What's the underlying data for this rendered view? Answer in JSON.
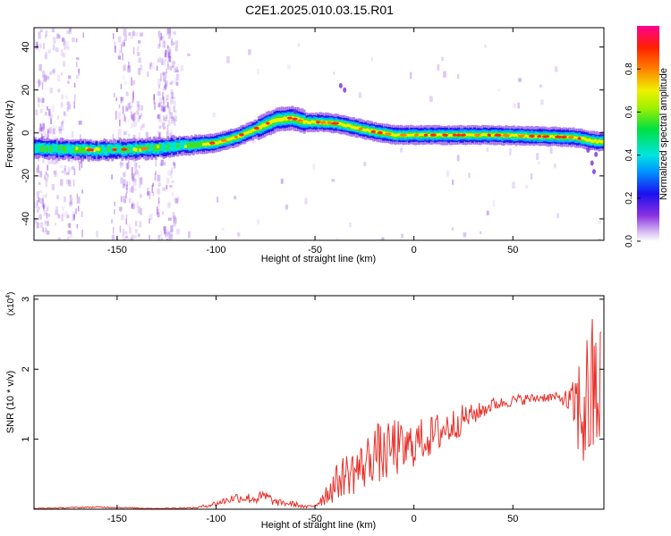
{
  "title": "C2E1.2025.010.03.15.R01",
  "chart_data": [
    {
      "type": "heatmap",
      "xlabel": "Height of straight line (km)",
      "ylabel": "Frequency (Hz)",
      "xlim": [
        -192,
        96
      ],
      "ylim": [
        -50,
        49
      ],
      "x_ticks": [
        -150,
        -100,
        -50,
        0,
        50
      ],
      "y_ticks": [
        -40,
        -20,
        0,
        20,
        40
      ],
      "colorbar": {
        "label": "Normalized spectral amplitude",
        "range": [
          0,
          1
        ],
        "ticks": [
          "0.0",
          "0.2",
          "0.4",
          "0.6",
          "0.8"
        ]
      },
      "ridge_frequency_hz": {
        "x": [
          -192,
          -180,
          -160,
          -140,
          -130,
          -120,
          -110,
          -100,
          -90,
          -80,
          -70,
          -62,
          -55,
          -48,
          -40,
          -30,
          -20,
          -10,
          0,
          20,
          40,
          60,
          80,
          92
        ],
        "y": [
          -7,
          -7.5,
          -8,
          -7.5,
          -7,
          -6,
          -5.5,
          -4.5,
          -2,
          2,
          6,
          7,
          5,
          5,
          4.5,
          2.5,
          0.5,
          -1,
          -1,
          -1,
          -1,
          -1.5,
          -2,
          -4
        ]
      },
      "grid": false
    },
    {
      "type": "line",
      "xlabel": "Height of straight line (km)",
      "ylabel": "SNR (10 * v/v)",
      "y_multiplier": "(x10",
      "y_multiplier_exp": "4",
      "y_multiplier_close": ")",
      "xlim": [
        -192,
        96
      ],
      "ylim": [
        0,
        3.05
      ],
      "x_ticks": [
        -150,
        -100,
        -50,
        0,
        50
      ],
      "y_ticks": [
        1,
        2,
        3
      ],
      "color": "#e8302a",
      "series": [
        {
          "x": [
            -192,
            -160,
            -130,
            -110,
            -100,
            -90,
            -80,
            -75,
            -70,
            -60,
            -55,
            -50,
            -45,
            -40,
            -35,
            -30,
            -25,
            -20,
            -15,
            -10,
            -5,
            0,
            5,
            10,
            15,
            20,
            25,
            30,
            35,
            40,
            45,
            50,
            55,
            60,
            65,
            70,
            75,
            80,
            85,
            90,
            94
          ],
          "y": [
            0.01,
            0.03,
            0.01,
            0.02,
            0.08,
            0.17,
            0.15,
            0.18,
            0.1,
            0.07,
            0.03,
            0.05,
            0.2,
            0.35,
            0.5,
            0.55,
            0.62,
            0.85,
            0.75,
            0.9,
            0.82,
            0.95,
            1.0,
            1.05,
            1.15,
            1.2,
            1.3,
            1.35,
            1.42,
            1.5,
            1.52,
            1.55,
            1.57,
            1.58,
            1.6,
            1.6,
            1.58,
            1.5,
            1.4,
            1.6,
            1.7
          ],
          "noise": [
            0.005,
            0.01,
            0.005,
            0.01,
            0.04,
            0.07,
            0.08,
            0.1,
            0.05,
            0.04,
            0.02,
            0.03,
            0.15,
            0.25,
            0.3,
            0.35,
            0.35,
            0.45,
            0.4,
            0.45,
            0.35,
            0.35,
            0.3,
            0.3,
            0.3,
            0.25,
            0.2,
            0.15,
            0.12,
            0.1,
            0.08,
            0.08,
            0.08,
            0.07,
            0.07,
            0.07,
            0.08,
            0.3,
            1.0,
            1.2,
            1.0
          ]
        }
      ]
    }
  ]
}
